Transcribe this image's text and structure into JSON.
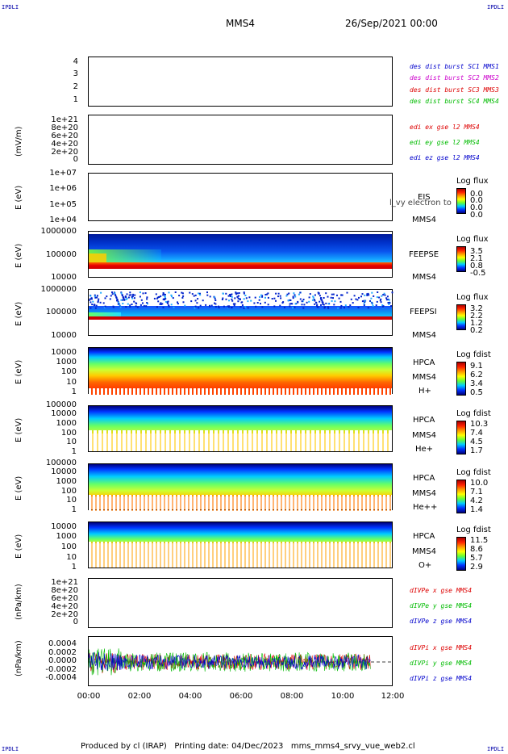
{
  "corner": {
    "tl": "IPDLI",
    "tr": "IPDLI",
    "bl": "IPDLI",
    "br": "IPDLI"
  },
  "title": {
    "spacecraft": "MMS4",
    "date": "26/Sep/2021 00:00"
  },
  "footer": {
    "text": "Produced by cl (IRAP)   Printing date: 04/Dec/2023   mms_mms4_srvy_vue_web2.cl"
  },
  "x_axis": {
    "ticks": [
      "00:00",
      "02:00",
      "04:00",
      "06:00",
      "08:00",
      "10:00",
      "12:00"
    ]
  },
  "panels": [
    {
      "id": "des",
      "ylabel": "",
      "yticks": [
        "4",
        "3",
        "2",
        "1"
      ],
      "legend": [
        {
          "text": "des dist burst SC1 MMS1",
          "color": "#0000cc"
        },
        {
          "text": "des dist burst SC2 MMS2",
          "color": "#cc00cc"
        },
        {
          "text": "des dist burst SC3 MMS3",
          "color": "#dd0000"
        },
        {
          "text": "des dist burst SC4 MMS4",
          "color": "#00bb00"
        }
      ]
    },
    {
      "id": "edi",
      "ylabel": "(mV/m)",
      "yticks": [
        "1e+21",
        "8e+20",
        "6e+20",
        "4e+20",
        "2e+20",
        "0"
      ],
      "legend": [
        {
          "text": "edi ex gse l2 MMS4",
          "color": "#dd0000"
        },
        {
          "text": "edi ey gse l2 MMS4",
          "color": "#00bb00"
        },
        {
          "text": "edi ez gse l2 MMS4",
          "color": "#0000cc"
        }
      ]
    },
    {
      "id": "eis",
      "ylabel": "E (eV)",
      "yticks": [
        "1e+07",
        "1e+06",
        "1e+05",
        "1e+04"
      ],
      "labels": [
        "EIS",
        "MMS4"
      ],
      "overlay": "l_vy electron to",
      "cbar_title": "Log flux",
      "cbar": [
        "0.0",
        "0.0",
        "0.0",
        "0.0"
      ]
    },
    {
      "id": "feepse",
      "ylabel": "E (eV)",
      "yticks": [
        "1000000",
        "100000",
        "10000"
      ],
      "labels": [
        "FEEPSE",
        "MMS4"
      ],
      "cbar_title": "Log flux",
      "cbar": [
        "3.5",
        "2.1",
        "0.8",
        "-0.5"
      ]
    },
    {
      "id": "feepsi",
      "ylabel": "E (eV)",
      "yticks": [
        "1000000",
        "100000",
        "10000"
      ],
      "labels": [
        "FEEPSI",
        "MMS4"
      ],
      "cbar_title": "Log flux",
      "cbar": [
        "3.2",
        "2.2",
        "1.2",
        "0.2"
      ]
    },
    {
      "id": "hpca_h",
      "ylabel": "E (eV)",
      "yticks": [
        "10000",
        "1000",
        "100",
        "10",
        "1"
      ],
      "labels": [
        "HPCA",
        "MMS4",
        "H+"
      ],
      "cbar_title": "Log fdist",
      "cbar": [
        "9.1",
        "6.2",
        "3.4",
        "0.5"
      ]
    },
    {
      "id": "hpca_he",
      "ylabel": "E (eV)",
      "yticks": [
        "100000",
        "10000",
        "1000",
        "100",
        "10",
        "1"
      ],
      "labels": [
        "HPCA",
        "MMS4",
        "He+"
      ],
      "cbar_title": "Log fdist",
      "cbar": [
        "10.3",
        "7.4",
        "4.5",
        "1.7"
      ]
    },
    {
      "id": "hpca_hepp",
      "ylabel": "E (eV)",
      "yticks": [
        "100000",
        "10000",
        "1000",
        "100",
        "10",
        "1"
      ],
      "labels": [
        "HPCA",
        "MMS4",
        "He++"
      ],
      "cbar_title": "Log fdist",
      "cbar": [
        "10.0",
        "7.1",
        "4.2",
        "1.4"
      ]
    },
    {
      "id": "hpca_o",
      "ylabel": "E (eV)",
      "yticks": [
        "10000",
        "1000",
        "100",
        "10",
        "1"
      ],
      "labels": [
        "HPCA",
        "MMS4",
        "O+"
      ],
      "cbar_title": "Log fdist",
      "cbar": [
        "11.5",
        "8.6",
        "5.7",
        "2.9"
      ]
    },
    {
      "id": "divpe",
      "ylabel": "(nPa/km)",
      "yticks": [
        "1e+21",
        "8e+20",
        "6e+20",
        "4e+20",
        "2e+20",
        "0"
      ],
      "legend": [
        {
          "text": "dIVPe x gse MMS4",
          "color": "#dd0000"
        },
        {
          "text": "dIVPe y gse MMS4",
          "color": "#00bb00"
        },
        {
          "text": "dIVPe z gse MMS4",
          "color": "#0000cc"
        }
      ]
    },
    {
      "id": "divpi",
      "ylabel": "(nPa/km)",
      "yticks": [
        "0.0004",
        "0.0002",
        "0.0000",
        "-0.0002",
        "-0.0004"
      ],
      "legend": [
        {
          "text": "dIVPi x gse MMS4",
          "color": "#dd0000"
        },
        {
          "text": "dIVPi y gse MMS4",
          "color": "#00bb00"
        },
        {
          "text": "dIVPi z gse MMS4",
          "color": "#0000cc"
        }
      ]
    }
  ],
  "chart_data": {
    "type": "heatmap",
    "title": "MMS4  26/Sep/2021 00:00",
    "x_range": [
      "00:00",
      "12:00"
    ],
    "divpi_ylim": [
      -0.0005,
      0.0005
    ],
    "divpi_data_end": "11:10",
    "legend_placement": "right"
  }
}
